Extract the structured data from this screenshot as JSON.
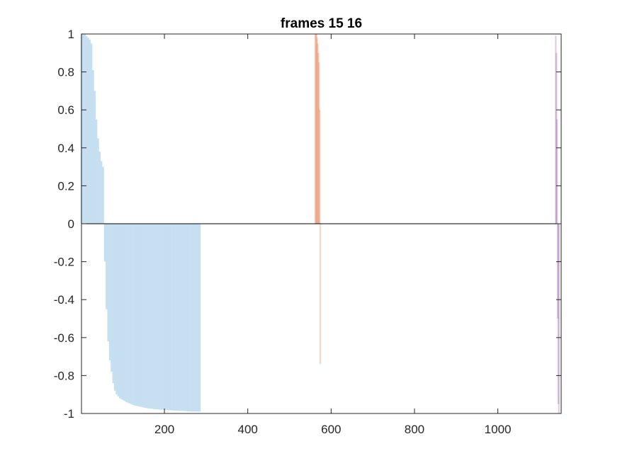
{
  "chart_data": {
    "type": "bar",
    "title": "frames 15 16",
    "xlabel": "",
    "ylabel": "",
    "xlim": [
      1,
      1152
    ],
    "ylim": [
      -1,
      1
    ],
    "xticks": [
      200,
      400,
      600,
      800,
      1000
    ],
    "xtick_labels": [
      "200",
      "400",
      "600",
      "800",
      "1000"
    ],
    "yticks": [
      1,
      0.8,
      0.6,
      0.4,
      0.2,
      0,
      -0.2,
      -0.4,
      -0.6,
      -0.8,
      -1
    ],
    "ytick_labels": [
      "1",
      "0.8",
      "0.6",
      "0.4",
      "0.2",
      "0",
      "-0.2",
      "-0.4",
      "-0.6",
      "-0.8",
      "-1"
    ],
    "grid": false,
    "series": [
      {
        "color": "#0072bd",
        "x_start": 1,
        "x_step": 4,
        "values": [
          1,
          1,
          1,
          0.99,
          0.98,
          0.97,
          0.95,
          0.81,
          0.7,
          0.55,
          0.45,
          0.38,
          0.33,
          0.3,
          -0.2,
          -0.45,
          -0.62,
          -0.72,
          -0.78,
          -0.84,
          -0.88,
          -0.9,
          -0.91,
          -0.92,
          -0.925,
          -0.93,
          -0.935,
          -0.94,
          -0.944,
          -0.948,
          -0.952,
          -0.955,
          -0.958,
          -0.96,
          -0.962,
          -0.964,
          -0.966,
          -0.968,
          -0.97,
          -0.972,
          -0.973,
          -0.974,
          -0.975,
          -0.976,
          -0.977,
          -0.978,
          -0.979,
          -0.98,
          -0.98,
          -0.981,
          -0.982,
          -0.982,
          -0.983,
          -0.983,
          -0.984,
          -0.984,
          -0.985,
          -0.985,
          -0.986,
          -0.986,
          -0.987,
          -0.987,
          -0.988,
          -0.988,
          -0.989,
          -0.989,
          -0.99,
          -0.99,
          -0.99,
          -0.99,
          -0.99,
          -0.99
        ]
      },
      {
        "color": "#d95319",
        "x_start": 562,
        "x_step": 1.5,
        "values": [
          1,
          1,
          1,
          0.98,
          0.95,
          0.9,
          0.85,
          0.6,
          -0.74
        ]
      },
      {
        "color": "#7e2f8e",
        "x_start": 1139,
        "x_step": 1.5,
        "values": [
          0.99,
          0.9,
          0.55,
          -0.5,
          -0.95,
          -1
        ]
      }
    ]
  }
}
